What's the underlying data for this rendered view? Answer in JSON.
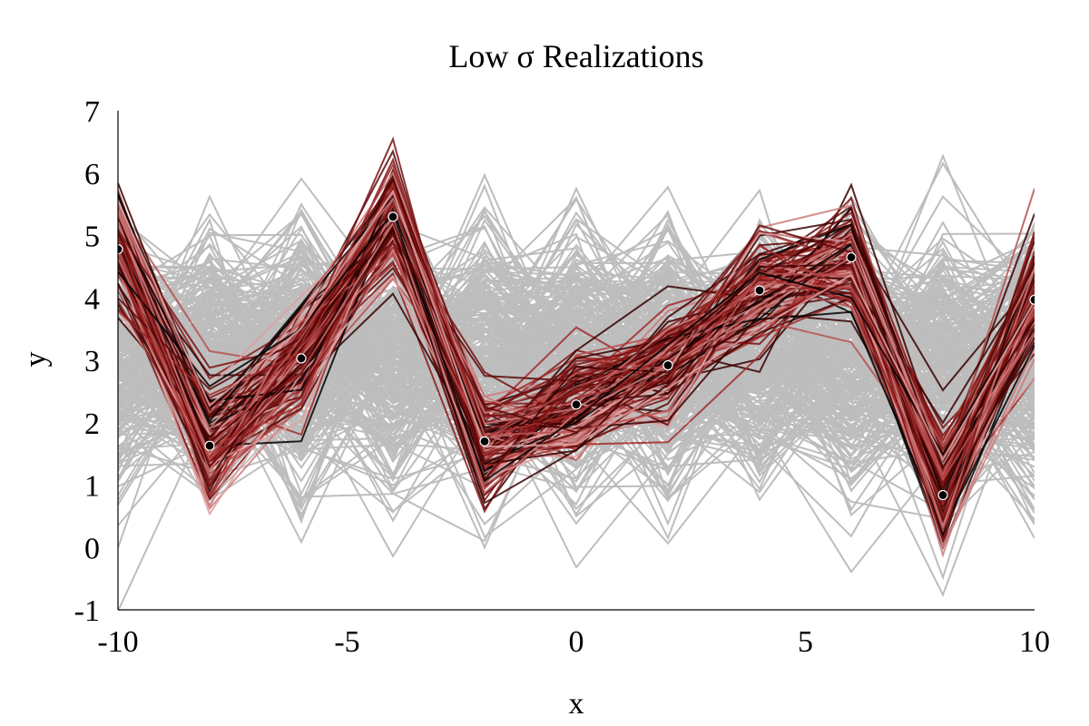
{
  "chart_data": {
    "type": "line",
    "title": "Low σ Realizations",
    "xlabel": "x",
    "ylabel": "y",
    "xlim": [
      -10,
      10
    ],
    "ylim": [
      -1,
      7
    ],
    "xticks": [
      -10,
      -5,
      0,
      5,
      10
    ],
    "xtick_labels": [
      "-10",
      "-5",
      "0",
      "5",
      "10"
    ],
    "yticks": [
      -1,
      0,
      1,
      2,
      3,
      4,
      5,
      6,
      7
    ],
    "ytick_labels": [
      "-1",
      "0",
      "1",
      "2",
      "3",
      "4",
      "5",
      "6",
      "7"
    ],
    "grid": false,
    "legend": "none",
    "x": [
      -10,
      -8,
      -6,
      -4,
      -2,
      0,
      2,
      4,
      6,
      8,
      10
    ],
    "observations": {
      "x": [
        -10,
        -8,
        -6,
        -4,
        -2,
        0,
        2,
        4,
        6,
        8,
        10
      ],
      "y": [
        4.78,
        1.63,
        3.03,
        5.3,
        1.7,
        2.29,
        2.92,
        4.12,
        4.65,
        0.84,
        3.97
      ]
    },
    "prior_realizations": {
      "count": 300,
      "mean": 3.0,
      "spread": 1.0,
      "color": "#bdbdbd"
    },
    "posterior_realizations": {
      "count": 120,
      "spread": 0.45,
      "colors": [
        "#000000",
        "#3a0000",
        "#5c0808",
        "#7a1212",
        "#8b1a1a",
        "#a32a2a",
        "#b85050",
        "#cc7a7a",
        "#dfa0a0"
      ]
    },
    "colors": {
      "marker_fill": "#000000",
      "marker_stroke": "#ffffff"
    }
  }
}
